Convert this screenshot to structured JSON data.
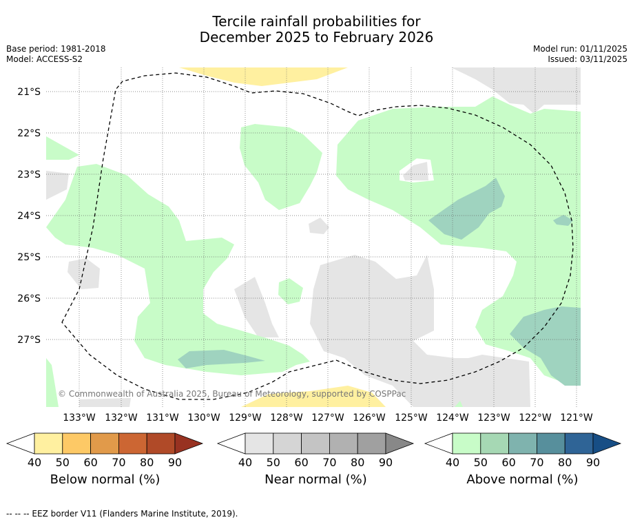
{
  "title_line1": "Tercile rainfall probabilities for",
  "title_line2": "December 2025 to February 2026",
  "base_period": "Base period: 1981-2018",
  "model": "Model: ACCESS-S2",
  "model_run": "Model run: 01/11/2025",
  "issued": "Issued: 03/11/2025",
  "lat_labels": [
    "21°S",
    "22°S",
    "23°S",
    "24°S",
    "25°S",
    "26°S",
    "27°S"
  ],
  "lon_labels": [
    "133°W",
    "132°W",
    "131°W",
    "130°W",
    "129°W",
    "128°W",
    "127°W",
    "126°W",
    "125°W",
    "124°W",
    "123°W",
    "122°W",
    "121°W"
  ],
  "copyright": "© Commonwealth of Australia 2025, Bureau of Meteorology, supported by COSPPac",
  "colorbars": [
    {
      "title": "Below normal (%)",
      "ticks": [
        "40",
        "50",
        "60",
        "70",
        "80",
        "90"
      ],
      "colors": [
        "#fff0a0",
        "#fdc966",
        "#e19a4a",
        "#cc6633",
        "#b04a28",
        "#983221"
      ]
    },
    {
      "title": "Near normal (%)",
      "ticks": [
        "40",
        "50",
        "60",
        "70",
        "80",
        "90"
      ],
      "colors": [
        "#e5e5e5",
        "#d5d5d5",
        "#c4c4c4",
        "#b1b1b1",
        "#a0a0a0",
        "#888888"
      ]
    },
    {
      "title": "Above normal (%)",
      "ticks": [
        "40",
        "50",
        "60",
        "70",
        "80",
        "90"
      ],
      "colors": [
        "#c8fcc8",
        "#a6d8b4",
        "#7fb3ae",
        "#578f9c",
        "#2f6496",
        "#174e85"
      ]
    }
  ],
  "footnote": "--  --  -- EEZ border V11 (Flanders Marine Institute, 2019)."
}
